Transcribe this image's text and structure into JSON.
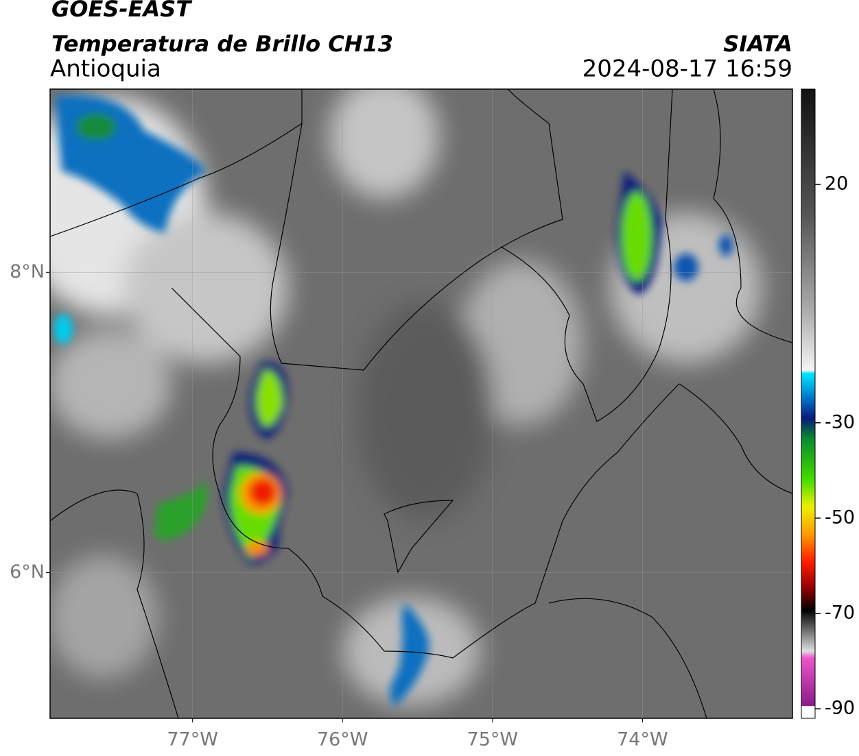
{
  "header": {
    "title": "GOES-EAST",
    "subtitle": "Temperatura de Brillo CH13",
    "region": "Antioquia",
    "source": "SIATA",
    "datetime": "2024-08-17 16:59"
  },
  "map": {
    "xlim": [
      -77.95,
      -73.0
    ],
    "ylim": [
      5.03,
      9.22
    ],
    "xticks": [
      {
        "value": -77,
        "label": "77°W"
      },
      {
        "value": -76,
        "label": "76°W"
      },
      {
        "value": -75,
        "label": "75°W"
      },
      {
        "value": -74,
        "label": "74°W"
      }
    ],
    "yticks": [
      {
        "value": 8,
        "label": "8°N"
      },
      {
        "value": 6,
        "label": "6°N"
      }
    ],
    "grid": true
  },
  "colorbar": {
    "lim": [
      -92,
      40
    ],
    "ticks": [
      20,
      -30,
      -50,
      -70,
      -90
    ]
  }
}
